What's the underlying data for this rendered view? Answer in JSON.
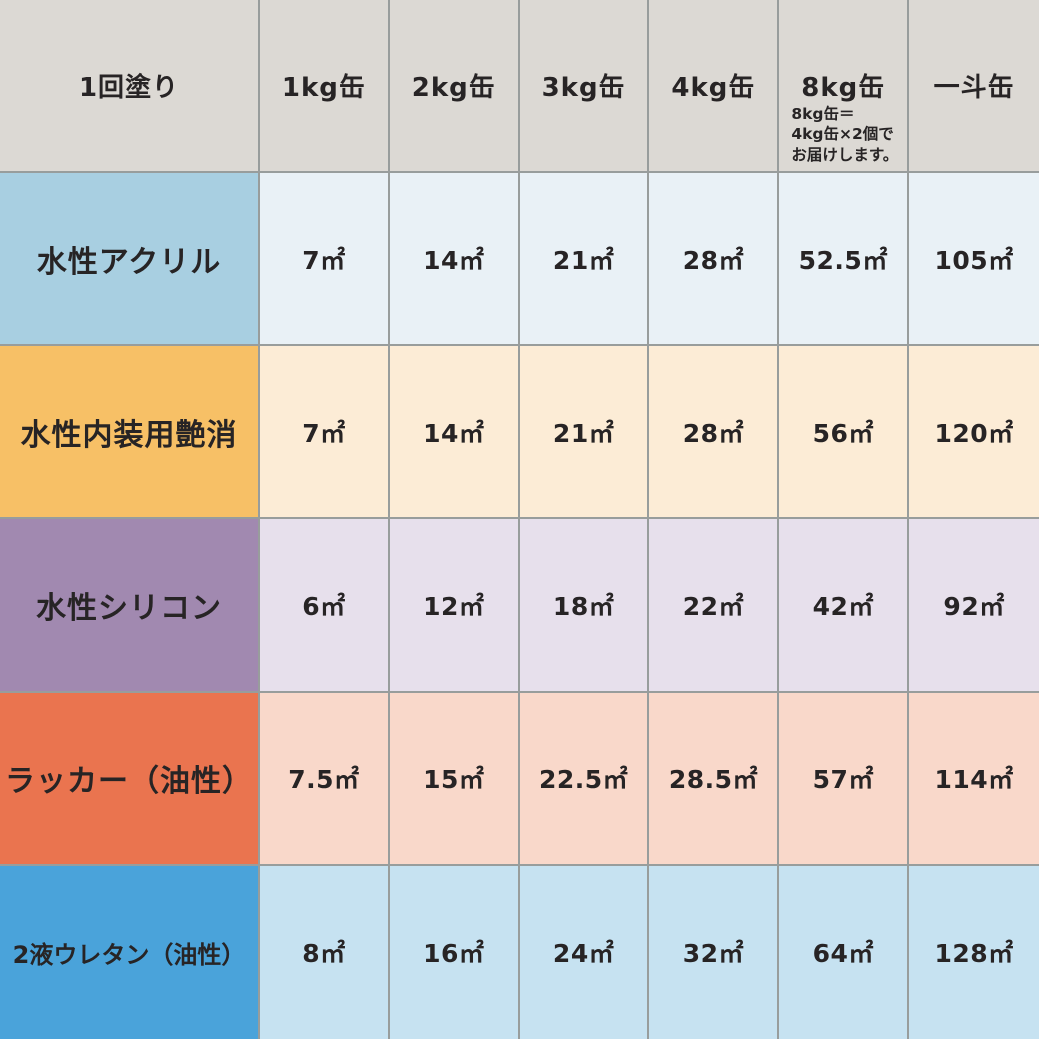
{
  "colors": {
    "header_bg": "#dcd9d4",
    "border": "#989d9c",
    "text": "#272425",
    "row_label_bg": [
      "#a8cfe1",
      "#f7c066",
      "#a189b0",
      "#ea744f",
      "#4aa3da"
    ],
    "row_data_bg": [
      "#e9f1f6",
      "#fcecd6",
      "#e7e0ec",
      "#f9d8ca",
      "#c6e2f1"
    ]
  },
  "table": {
    "header": {
      "row_header": "1回塗り",
      "columns": [
        {
          "label": "1kg缶"
        },
        {
          "label": "2kg缶"
        },
        {
          "label": "3kg缶"
        },
        {
          "label": "4kg缶"
        },
        {
          "label": "8kg缶",
          "note": "8kg缶＝\n4kg缶×2個で\nお届けします。"
        },
        {
          "label": "一斗缶"
        }
      ]
    },
    "rows": [
      {
        "label": "水性アクリル",
        "values": [
          "7㎡",
          "14㎡",
          "21㎡",
          "28㎡",
          "52.5㎡",
          "105㎡"
        ]
      },
      {
        "label": "水性内装用艶消",
        "values": [
          "7㎡",
          "14㎡",
          "21㎡",
          "28㎡",
          "56㎡",
          "120㎡"
        ]
      },
      {
        "label": "水性シリコン",
        "values": [
          "6㎡",
          "12㎡",
          "18㎡",
          "22㎡",
          "42㎡",
          "92㎡"
        ]
      },
      {
        "label": "ラッカー（油性）",
        "values": [
          "7.5㎡",
          "15㎡",
          "22.5㎡",
          "28.5㎡",
          "57㎡",
          "114㎡"
        ]
      },
      {
        "label": "2液ウレタン（油性）",
        "values": [
          "8㎡",
          "16㎡",
          "24㎡",
          "32㎡",
          "64㎡",
          "128㎡"
        ]
      }
    ]
  }
}
